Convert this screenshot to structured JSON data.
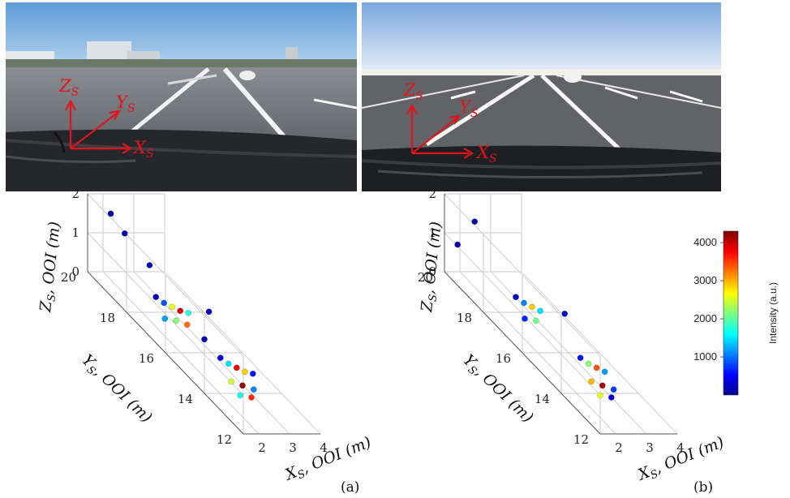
{
  "panels": [
    {
      "id": "a",
      "caption": "(a)",
      "frame_labels": {
        "z": "Z",
        "y": "Y",
        "x": "X",
        "subscript": "S"
      },
      "plot": {
        "z_ticks": [
          "0",
          "1",
          "2"
        ],
        "y_ticks": [
          "12",
          "14",
          "16",
          "18",
          "20"
        ],
        "x_ticks": [
          "2",
          "3",
          "4"
        ],
        "z_label": "Z",
        "y_label": "Y",
        "x_label": "X",
        "label_subscript": "S",
        "label_suffix": ", OOI (m)"
      }
    },
    {
      "id": "b",
      "caption": "(b)",
      "frame_labels": {
        "z": "Z",
        "y": "Y",
        "x": "X",
        "subscript": "S"
      },
      "plot": {
        "z_ticks": [
          "0",
          "1",
          "2"
        ],
        "y_ticks": [
          "12",
          "14",
          "16",
          "18",
          "20"
        ],
        "x_ticks": [
          "2",
          "3",
          "4"
        ],
        "z_label": "Z",
        "y_label": "Y",
        "x_label": "X",
        "label_subscript": "S",
        "label_suffix": ", OOI (m)"
      }
    }
  ],
  "colorbar": {
    "label": "Intensity (a.u.)",
    "ticks": [
      "1000",
      "2000",
      "3000",
      "4000"
    ],
    "min": 0,
    "max": 4300
  },
  "chart_data": [
    {
      "type": "scatter",
      "title": "",
      "xlabel": "X_S, OOI (m)",
      "ylabel": "Y_S, OOI (m)",
      "zlabel": "Z_S, OOI (m)",
      "xlim": [
        1.5,
        4
      ],
      "ylim": [
        12,
        20
      ],
      "zlim": [
        0,
        2
      ],
      "colorbar": "Intensity (a.u.)",
      "points": [
        {
          "x": 2.2,
          "y": 17.6,
          "z": 0.6,
          "c": 300
        },
        {
          "x": 2.4,
          "y": 17.5,
          "z": 0.5,
          "c": 900
        },
        {
          "x": 2.6,
          "y": 17.4,
          "z": 0.45,
          "c": 2600
        },
        {
          "x": 2.8,
          "y": 17.3,
          "z": 0.4,
          "c": 3900
        },
        {
          "x": 3.0,
          "y": 17.2,
          "z": 0.4,
          "c": 1800
        },
        {
          "x": 2.3,
          "y": 17.3,
          "z": 0.2,
          "c": 1200
        },
        {
          "x": 2.6,
          "y": 17.2,
          "z": 0.2,
          "c": 2200
        },
        {
          "x": 2.9,
          "y": 17.1,
          "z": 0.15,
          "c": 3300
        },
        {
          "x": 2.2,
          "y": 19.2,
          "z": 1.4,
          "c": 200
        },
        {
          "x": 2.0,
          "y": 19.6,
          "z": 1.7,
          "c": 150
        },
        {
          "x": 2.5,
          "y": 18.4,
          "z": 1.0,
          "c": 250
        },
        {
          "x": 3.1,
          "y": 16.3,
          "z": 0.9,
          "c": 300
        },
        {
          "x": 2.7,
          "y": 15.9,
          "z": 0.4,
          "c": 250
        },
        {
          "x": 2.4,
          "y": 14.6,
          "z": 0.6,
          "c": 400
        },
        {
          "x": 2.6,
          "y": 14.5,
          "z": 0.5,
          "c": 1500
        },
        {
          "x": 2.8,
          "y": 14.4,
          "z": 0.45,
          "c": 3800
        },
        {
          "x": 3.0,
          "y": 14.3,
          "z": 0.4,
          "c": 2900
        },
        {
          "x": 3.2,
          "y": 14.2,
          "z": 0.4,
          "c": 600
        },
        {
          "x": 2.5,
          "y": 14.2,
          "z": 0.2,
          "c": 2500
        },
        {
          "x": 2.8,
          "y": 14.1,
          "z": 0.15,
          "c": 4200
        },
        {
          "x": 3.1,
          "y": 14.0,
          "z": 0.1,
          "c": 1100
        },
        {
          "x": 2.6,
          "y": 13.9,
          "z": 0.0,
          "c": 1700
        },
        {
          "x": 2.9,
          "y": 13.8,
          "z": 0.0,
          "c": 3600
        }
      ]
    },
    {
      "type": "scatter",
      "title": "",
      "xlabel": "X_S, OOI (m)",
      "ylabel": "Y_S, OOI (m)",
      "zlabel": "Z_S, OOI (m)",
      "xlim": [
        1.5,
        4
      ],
      "ylim": [
        12,
        20
      ],
      "zlim": [
        0,
        2
      ],
      "colorbar": "Intensity (a.u.)",
      "points": [
        {
          "x": 2.3,
          "y": 17.6,
          "z": 0.6,
          "c": 300
        },
        {
          "x": 2.5,
          "y": 17.5,
          "z": 0.5,
          "c": 1100
        },
        {
          "x": 2.7,
          "y": 17.4,
          "z": 0.45,
          "c": 2900
        },
        {
          "x": 2.9,
          "y": 17.3,
          "z": 0.4,
          "c": 1500
        },
        {
          "x": 2.4,
          "y": 17.3,
          "z": 0.2,
          "c": 700
        },
        {
          "x": 2.7,
          "y": 17.2,
          "z": 0.2,
          "c": 2100
        },
        {
          "x": 2.1,
          "y": 19.4,
          "z": 1.6,
          "c": 150
        },
        {
          "x": 1.8,
          "y": 19.8,
          "z": 0.8,
          "c": 200
        },
        {
          "x": 3.0,
          "y": 16.2,
          "z": 0.9,
          "c": 300
        },
        {
          "x": 2.5,
          "y": 14.6,
          "z": 0.6,
          "c": 600
        },
        {
          "x": 2.7,
          "y": 14.5,
          "z": 0.5,
          "c": 2200
        },
        {
          "x": 2.9,
          "y": 14.4,
          "z": 0.45,
          "c": 3400
        },
        {
          "x": 3.1,
          "y": 14.3,
          "z": 0.4,
          "c": 1200
        },
        {
          "x": 2.6,
          "y": 14.2,
          "z": 0.2,
          "c": 3000
        },
        {
          "x": 2.9,
          "y": 14.1,
          "z": 0.15,
          "c": 4100
        },
        {
          "x": 3.2,
          "y": 14.0,
          "z": 0.1,
          "c": 800
        },
        {
          "x": 2.7,
          "y": 13.9,
          "z": 0.0,
          "c": 2600
        },
        {
          "x": 3.0,
          "y": 13.8,
          "z": 0.0,
          "c": 400
        }
      ]
    }
  ]
}
